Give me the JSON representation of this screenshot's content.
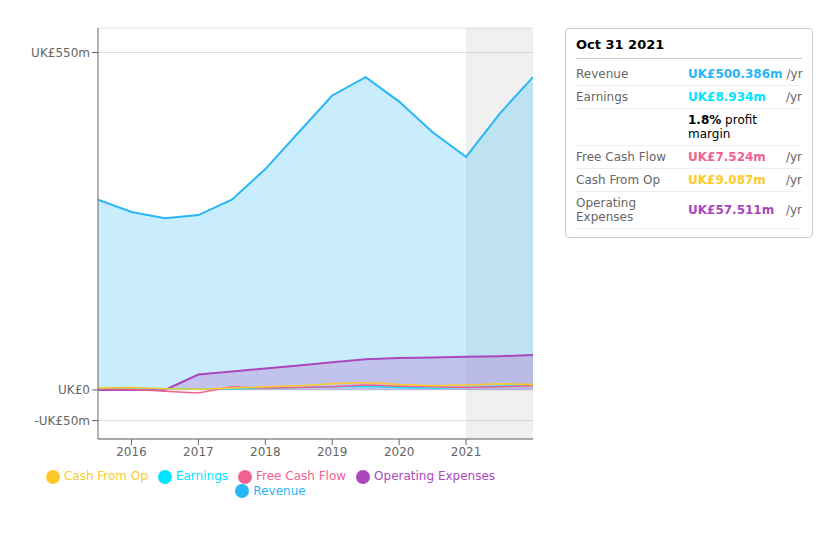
{
  "chart_data": {
    "type": "line",
    "x": [
      2015.5,
      2016,
      2016.5,
      2017,
      2017.5,
      2018,
      2018.5,
      2019,
      2019.5,
      2020,
      2020.5,
      2021,
      2021.5,
      2022
    ],
    "xlim": [
      2015.5,
      2022
    ],
    "xticks": [
      2016,
      2017,
      2018,
      2019,
      2020,
      2021
    ],
    "ylim": [
      -80,
      590
    ],
    "yticks": [
      {
        "value": -50,
        "label": "-UK£50m"
      },
      {
        "value": 0,
        "label": "UK£0"
      },
      {
        "value": 550,
        "label": "UK£550m"
      }
    ],
    "grid": true,
    "legend": "bottom",
    "highlight": [
      2021,
      2022
    ],
    "series": [
      {
        "name": "Revenue",
        "type": "area",
        "color": "#29b6f6",
        "values": [
          310,
          290,
          280,
          285,
          310,
          360,
          420,
          480,
          510,
          470,
          420,
          380,
          450,
          510
        ]
      },
      {
        "name": "Earnings",
        "type": "line",
        "color": "#00e5ff",
        "values": [
          2,
          3,
          2,
          1,
          2,
          3,
          4,
          5,
          6,
          4,
          3,
          4,
          6,
          9
        ]
      },
      {
        "name": "Free Cash Flow",
        "type": "line",
        "color": "#f06292",
        "values": [
          2,
          1,
          -2,
          -5,
          5,
          3,
          4,
          5,
          8,
          6,
          5,
          4,
          5,
          7
        ]
      },
      {
        "name": "Cash From Op",
        "type": "line",
        "color": "#ffca28",
        "values": [
          3,
          4,
          2,
          1,
          3,
          5,
          7,
          10,
          12,
          9,
          7,
          8,
          10,
          9
        ]
      },
      {
        "name": "Operating Expenses",
        "type": "area",
        "color": "#ab47bc",
        "values": [
          0,
          0,
          0,
          25,
          30,
          35,
          40,
          45,
          50,
          52,
          53,
          54,
          55,
          57
        ]
      }
    ],
    "annotations": [
      {
        "text": "Oct 31 2021"
      },
      {
        "label": "Revenue",
        "text": "UK£500.386m",
        "unit": "/yr",
        "color": "#29b6f6"
      },
      {
        "label": "Earnings",
        "text": "UK£8.934m",
        "unit": "/yr",
        "color": "#00e5ff"
      },
      {
        "text": "1.8% profit margin"
      },
      {
        "label": "Free Cash Flow",
        "text": "UK£7.524m",
        "unit": "/yr",
        "color": "#f06292"
      },
      {
        "label": "Cash From Op",
        "text": "UK£9.087m",
        "unit": "/yr",
        "color": "#ffca28"
      },
      {
        "label": "Operating Expenses",
        "text": "UK£57.511m",
        "unit": "/yr",
        "color": "#ab47bc"
      }
    ]
  }
}
